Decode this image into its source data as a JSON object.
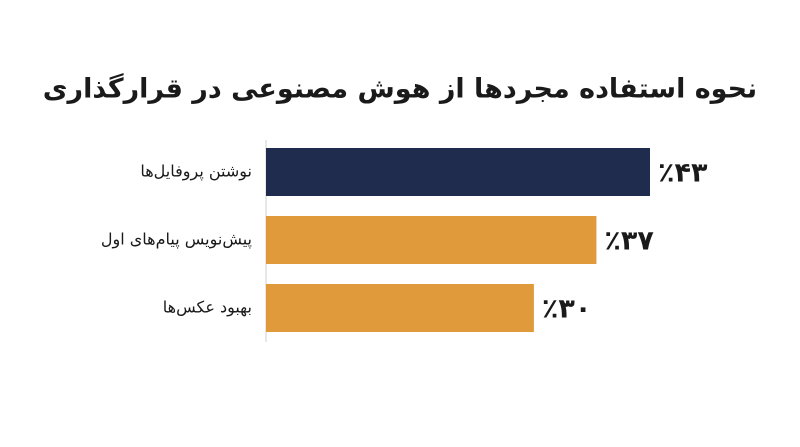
{
  "chart_data": {
    "type": "hbar",
    "title": "نحوه استفاده مجردها از هوش مصنوعی در قرارگذاری",
    "categories": [
      "نوشتن پروفایل‌ها",
      "پیش‌نویس پیام‌های اول",
      "بهبود عکس‌ها"
    ],
    "values": [
      43,
      37,
      30
    ],
    "value_labels": [
      "٪۴۳",
      "٪۳۷",
      "٪۳۰"
    ],
    "colors": [
      "#1f2c4d",
      "#e09a3b",
      "#e09a3b"
    ]
  }
}
